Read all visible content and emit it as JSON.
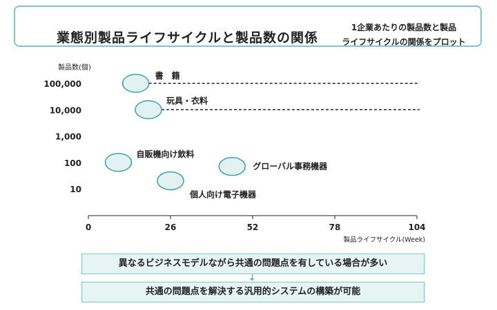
{
  "header": {
    "title": "業態別製品ライフサイクルと製品数の関係",
    "subtitle_line1": "1企業あたりの製品数と製品",
    "subtitle_line2": "ライフサイクルの関係をプロット"
  },
  "chart_data": {
    "type": "scatter",
    "ylabel": "製品数(個)",
    "xlabel": "製品ライフサイクル(Week)",
    "y_scale": "log",
    "yticks": [
      {
        "value": 10,
        "label": "10"
      },
      {
        "value": 100,
        "label": "100"
      },
      {
        "value": 1000,
        "label": "1,000"
      },
      {
        "value": 10000,
        "label": "10,000"
      },
      {
        "value": 100000,
        "label": "100,000"
      }
    ],
    "xticks": [
      0,
      26,
      52,
      78,
      104
    ],
    "xlim": [
      0,
      104
    ],
    "points": [
      {
        "label": "書　籍",
        "x": 15,
        "y": 100000,
        "guide_line": true
      },
      {
        "label": "玩具・衣料",
        "x": 19,
        "y": 10000,
        "guide_line": true
      },
      {
        "label": "自販機向け飲料",
        "x": 9.5,
        "y": 100,
        "guide_line": false
      },
      {
        "label": "個人向け電子機器",
        "x": 26,
        "y": 20,
        "guide_line": false
      },
      {
        "label": "グローバル事務機器",
        "x": 45.5,
        "y": 70,
        "guide_line": false
      }
    ],
    "colors": {
      "bubble_fill": "#e2f2f3",
      "bubble_stroke": "#3aa0a8",
      "accent": "#7fc6c6"
    }
  },
  "callouts": {
    "first": "異なるビジネスモデルながら共通の問題点を有している場合が多い",
    "second": "共通の問題点を解決する汎用的システムの構築が可能"
  }
}
